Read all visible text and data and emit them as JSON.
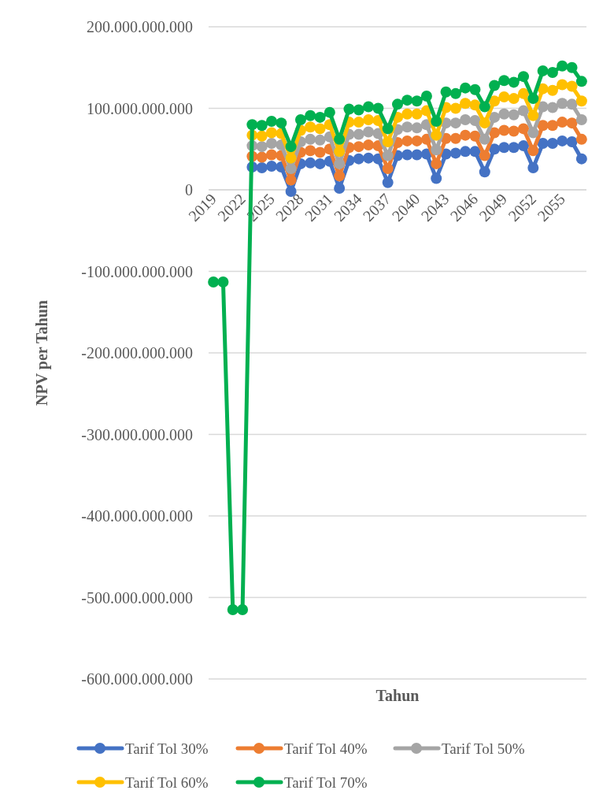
{
  "chart_data": {
    "type": "line",
    "xlabel": "Tahun",
    "ylabel": "NPV per Tahun",
    "x": [
      2019,
      2020,
      2021,
      2022,
      2023,
      2024,
      2025,
      2026,
      2027,
      2028,
      2029,
      2030,
      2031,
      2032,
      2033,
      2034,
      2035,
      2036,
      2037,
      2038,
      2039,
      2040,
      2041,
      2042,
      2043,
      2044,
      2045,
      2046,
      2047,
      2048,
      2049,
      2050,
      2051,
      2052,
      2053,
      2054,
      2055,
      2056,
      2057
    ],
    "xlim": [
      2018.5,
      2057.5
    ],
    "xticks": [
      2019,
      2022,
      2025,
      2028,
      2031,
      2034,
      2037,
      2040,
      2043,
      2046,
      2049,
      2052,
      2055
    ],
    "ylim": [
      -600000000000,
      200000000000
    ],
    "yticks": [
      {
        "value": -600000000000,
        "label": "-600.000.000.000"
      },
      {
        "value": -500000000000,
        "label": "-500.000.000.000"
      },
      {
        "value": -400000000000,
        "label": "-400.000.000.000"
      },
      {
        "value": -300000000000,
        "label": "-300.000.000.000"
      },
      {
        "value": -200000000000,
        "label": "-200.000.000.000"
      },
      {
        "value": -100000000000,
        "label": "-100.000.000.000"
      },
      {
        "value": 0,
        "label": "0"
      },
      {
        "value": 100000000000,
        "label": "100.000.000.000"
      },
      {
        "value": 200000000000,
        "label": "200.000.000.000"
      }
    ],
    "grid": "y",
    "legend": "bottom",
    "marker": "circle",
    "line_style": "solid",
    "series": [
      {
        "name": "Tarif Tol 30%",
        "color": "#4472c4",
        "values": [
          null,
          null,
          null,
          null,
          28000000000.0,
          27000000000.0,
          29000000000.0,
          28000000000.0,
          -2000000000.0,
          32000000000.0,
          33000000000.0,
          32000000000.0,
          35000000000.0,
          2000000000.0,
          36000000000.0,
          38000000000.0,
          39000000000.0,
          38000000000.0,
          9000000000.0,
          42000000000.0,
          43000000000.0,
          43000000000.0,
          44000000000.0,
          14000000000.0,
          44000000000.0,
          45000000000.0,
          47000000000.0,
          47000000000.0,
          22000000000.0,
          50000000000.0,
          52000000000.0,
          52000000000.0,
          54000000000.0,
          27000000000.0,
          57000000000.0,
          57000000000.0,
          60000000000.0,
          59000000000.0,
          38000000000.0
        ]
      },
      {
        "name": "Tarif Tol 40%",
        "color": "#ed7d31",
        "values": [
          null,
          null,
          null,
          null,
          41000000000.0,
          40000000000.0,
          43000000000.0,
          42000000000.0,
          12000000000.0,
          46000000000.0,
          48000000000.0,
          46000000000.0,
          50000000000.0,
          17000000000.0,
          52000000000.0,
          53000000000.0,
          55000000000.0,
          54000000000.0,
          26000000000.0,
          58000000000.0,
          60000000000.0,
          60000000000.0,
          62000000000.0,
          32000000000.0,
          63000000000.0,
          63000000000.0,
          67000000000.0,
          66000000000.0,
          42000000000.0,
          70000000000.0,
          73000000000.0,
          72000000000.0,
          75000000000.0,
          48000000000.0,
          79000000000.0,
          79000000000.0,
          83000000000.0,
          82000000000.0,
          62000000000.0
        ]
      },
      {
        "name": "Tarif Tol 50%",
        "color": "#a5a5a5",
        "values": [
          null,
          null,
          null,
          null,
          54000000000.0,
          53000000000.0,
          57000000000.0,
          55000000000.0,
          26000000000.0,
          59000000000.0,
          62000000000.0,
          61000000000.0,
          65000000000.0,
          32000000000.0,
          68000000000.0,
          68000000000.0,
          71000000000.0,
          69000000000.0,
          42000000000.0,
          74000000000.0,
          77000000000.0,
          76000000000.0,
          80000000000.0,
          49000000000.0,
          82000000000.0,
          82000000000.0,
          86000000000.0,
          85000000000.0,
          62000000000.0,
          89000000000.0,
          93000000000.0,
          92000000000.0,
          97000000000.0,
          70000000000.0,
          102000000000.0,
          101000000000.0,
          106000000000.0,
          105000000000.0,
          86000000000.0
        ]
      },
      {
        "name": "Tarif Tol 60%",
        "color": "#ffc000",
        "values": [
          null,
          null,
          null,
          null,
          67000000000.0,
          66000000000.0,
          70000000000.0,
          69000000000.0,
          39000000000.0,
          73000000000.0,
          77000000000.0,
          75000000000.0,
          80000000000.0,
          47000000000.0,
          83000000000.0,
          83000000000.0,
          86000000000.0,
          85000000000.0,
          59000000000.0,
          89000000000.0,
          93000000000.0,
          93000000000.0,
          97000000000.0,
          67000000000.0,
          101000000000.0,
          100000000000.0,
          106000000000.0,
          104000000000.0,
          82000000000.0,
          109000000000.0,
          114000000000.0,
          112000000000.0,
          118000000000.0,
          91000000000.0,
          124000000000.0,
          122000000000.0,
          129000000000.0,
          127000000000.0,
          109000000000.0
        ]
      },
      {
        "name": "Tarif Tol 70%",
        "color": "#00b050",
        "values": [
          -113000000000.0,
          -113000000000.0,
          -515000000000.0,
          -515000000000.0,
          80000000000.0,
          79000000000.0,
          84000000000.0,
          82000000000.0,
          53000000000.0,
          86000000000.0,
          91000000000.0,
          89000000000.0,
          95000000000.0,
          62000000000.0,
          99000000000.0,
          98000000000.0,
          102000000000.0,
          100000000000.0,
          75000000000.0,
          105000000000.0,
          110000000000.0,
          109000000000.0,
          115000000000.0,
          84000000000.0,
          120000000000.0,
          118000000000.0,
          125000000000.0,
          123000000000.0,
          102000000000.0,
          128000000000.0,
          134000000000.0,
          132000000000.0,
          139000000000.0,
          112000000000.0,
          146000000000.0,
          144000000000.0,
          152000000000.0,
          150000000000.0,
          133000000000.0
        ]
      }
    ]
  }
}
